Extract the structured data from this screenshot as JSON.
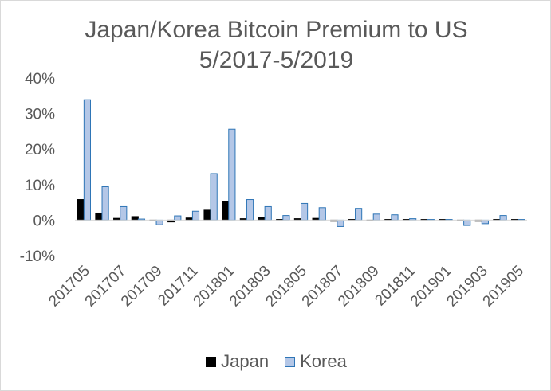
{
  "chart_data": {
    "type": "bar",
    "title_lines": [
      "Japan/Korea Bitcoin Premium to US",
      "5/2017-5/2019"
    ],
    "xlabel": "",
    "ylabel": "",
    "ylim": [
      -10,
      40
    ],
    "y_ticks": [
      -10,
      0,
      10,
      20,
      30,
      40
    ],
    "y_tick_labels": [
      "-10%",
      "0%",
      "10%",
      "20%",
      "30%",
      "40%"
    ],
    "categories": [
      "201705",
      "201706",
      "201707",
      "201708",
      "201709",
      "201710",
      "201711",
      "201712",
      "201801",
      "201802",
      "201803",
      "201804",
      "201805",
      "201806",
      "201807",
      "201808",
      "201809",
      "201810",
      "201811",
      "201812",
      "201901",
      "201902",
      "201903",
      "201904",
      "201905"
    ],
    "x_tick_labels": [
      "201705",
      "201707",
      "201709",
      "201711",
      "201801",
      "201803",
      "201805",
      "201807",
      "201809",
      "201811",
      "201901",
      "201903",
      "201905"
    ],
    "grid": false,
    "legend_position": "bottom",
    "series": [
      {
        "name": "Japan",
        "color": "#000000",
        "border": "#000000",
        "values": [
          5.8,
          2.0,
          0.5,
          1.0,
          -0.2,
          -0.5,
          0.6,
          2.8,
          5.2,
          0.4,
          0.7,
          0.2,
          0.4,
          0.5,
          -0.3,
          0.2,
          -0.2,
          0.2,
          0.2,
          0.2,
          0.2,
          -0.2,
          -0.3,
          0.2,
          0.2
        ]
      },
      {
        "name": "Korea",
        "color": "#b4c7e7",
        "border": "#2e75b6",
        "values": [
          33.9,
          9.4,
          3.8,
          0.3,
          -1.3,
          1.2,
          2.5,
          13.1,
          25.6,
          5.8,
          3.8,
          1.3,
          4.7,
          3.5,
          -1.8,
          3.3,
          1.7,
          1.5,
          0.4,
          0.2,
          0.2,
          -1.5,
          -1.0,
          1.3,
          0.2
        ]
      }
    ]
  }
}
